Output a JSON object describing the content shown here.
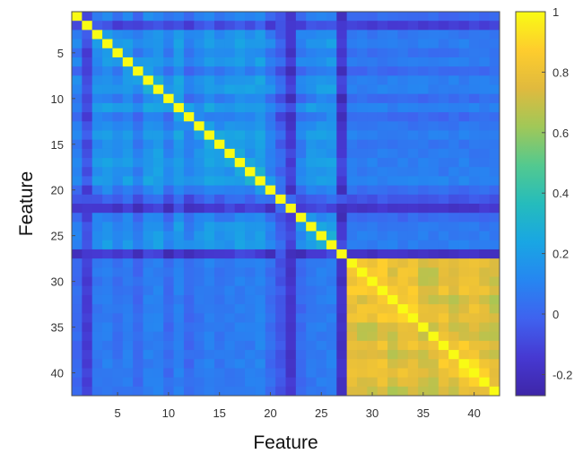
{
  "chart_data": {
    "type": "heatmap",
    "n": 42,
    "xlabel": "Feature",
    "ylabel": "Feature",
    "x_ticks": [
      5,
      10,
      15,
      20,
      25,
      30,
      35,
      40
    ],
    "y_ticks": [
      5,
      10,
      15,
      20,
      25,
      30,
      35,
      40
    ],
    "x_tick_labels": [
      "5",
      "10",
      "15",
      "20",
      "25",
      "30",
      "35",
      "40"
    ],
    "y_tick_labels": [
      "5",
      "10",
      "15",
      "20",
      "25",
      "30",
      "35",
      "40"
    ],
    "colorbar": {
      "min": -0.27,
      "max": 1,
      "ticks": [
        -0.2,
        0,
        0.2,
        0.4,
        0.6,
        0.8,
        1
      ],
      "tick_labels": [
        "-0.2",
        "0",
        "0.2",
        "0.4",
        "0.6",
        "0.8",
        "1"
      ],
      "colormap": "parula"
    },
    "diagonal_value": 1,
    "description_blocks": {
      "group_a": {
        "features": [
          1,
          27
        ],
        "typical_within": 0.12
      },
      "group_b": {
        "features": [
          28,
          42
        ],
        "typical_within": 0.72
      },
      "between_groups": 0.05
    }
  }
}
